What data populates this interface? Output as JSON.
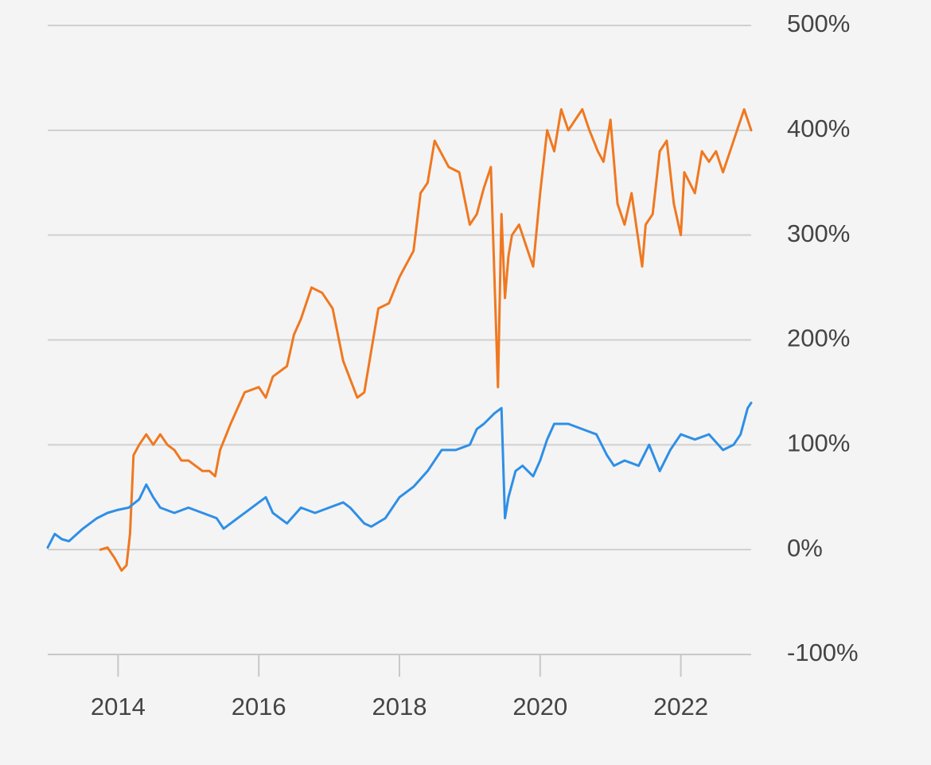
{
  "chart_data": {
    "type": "line",
    "title": "",
    "xlabel": "",
    "ylabel": "",
    "xlim": [
      2013.0,
      2023.0
    ],
    "ylim": [
      -100,
      500
    ],
    "x_ticks": [
      2014,
      2016,
      2018,
      2020,
      2022
    ],
    "x_tick_labels": [
      "2014",
      "2016",
      "2018",
      "2020",
      "2022"
    ],
    "y_ticks": [
      500,
      400,
      300,
      200,
      100,
      0,
      -100
    ],
    "y_tick_labels": [
      "500%",
      "400%",
      "300%",
      "200%",
      "100%",
      "0%",
      "-100%"
    ],
    "grid": "horizontal",
    "legend": "none",
    "colors": {
      "series_orange": "#f07820",
      "series_blue": "#2e8fe6",
      "grid": "#d0d0d0",
      "axis": "#c8c8c8",
      "background": "#f4f4f4"
    },
    "series": [
      {
        "color": "#f07820",
        "x": [
          2013.75,
          2013.85,
          2013.95,
          2014.05,
          2014.12,
          2014.17,
          2014.22,
          2014.3,
          2014.4,
          2014.5,
          2014.6,
          2014.7,
          2014.8,
          2014.9,
          2015.0,
          2015.1,
          2015.2,
          2015.3,
          2015.38,
          2015.45,
          2015.6,
          2015.8,
          2016.0,
          2016.1,
          2016.2,
          2016.4,
          2016.5,
          2016.6,
          2016.75,
          2016.9,
          2017.05,
          2017.2,
          2017.4,
          2017.5,
          2017.6,
          2017.7,
          2017.85,
          2018.0,
          2018.2,
          2018.3,
          2018.4,
          2018.5,
          2018.62,
          2018.7,
          2018.85,
          2019.0,
          2019.1,
          2019.2,
          2019.3,
          2019.4,
          2019.45,
          2019.5,
          2019.55,
          2019.6,
          2019.7,
          2019.8,
          2019.9,
          2020.0,
          2020.1,
          2020.2,
          2020.3,
          2020.4,
          2020.5,
          2020.6,
          2020.7,
          2020.82,
          2020.9,
          2021.0,
          2021.1,
          2021.2,
          2021.3,
          2021.45,
          2021.5,
          2021.6,
          2021.7,
          2021.8,
          2021.9,
          2022.0,
          2022.05,
          2022.2,
          2022.3,
          2022.4,
          2022.5,
          2022.6,
          2022.7,
          2022.8,
          2022.9,
          2023.0
        ],
        "y": [
          0,
          2,
          -8,
          -20,
          -15,
          15,
          90,
          100,
          110,
          100,
          110,
          100,
          95,
          85,
          85,
          80,
          75,
          75,
          70,
          95,
          120,
          150,
          155,
          145,
          165,
          175,
          205,
          220,
          250,
          245,
          230,
          180,
          145,
          150,
          190,
          230,
          235,
          260,
          285,
          340,
          350,
          390,
          375,
          365,
          360,
          310,
          320,
          345,
          365,
          155,
          320,
          240,
          280,
          300,
          310,
          290,
          270,
          340,
          400,
          380,
          420,
          400,
          410,
          420,
          400,
          380,
          370,
          410,
          330,
          310,
          340,
          270,
          310,
          320,
          380,
          390,
          330,
          300,
          360,
          340,
          380,
          370,
          380,
          360,
          380,
          400,
          420,
          400
        ]
      },
      {
        "color": "#2e8fe6",
        "x": [
          2013.0,
          2013.1,
          2013.2,
          2013.3,
          2013.5,
          2013.7,
          2013.85,
          2014.0,
          2014.15,
          2014.3,
          2014.4,
          2014.5,
          2014.6,
          2014.8,
          2015.0,
          2015.2,
          2015.4,
          2015.5,
          2015.7,
          2015.9,
          2016.1,
          2016.2,
          2016.4,
          2016.6,
          2016.8,
          2017.0,
          2017.2,
          2017.3,
          2017.5,
          2017.6,
          2017.8,
          2018.0,
          2018.2,
          2018.4,
          2018.6,
          2018.8,
          2019.0,
          2019.1,
          2019.2,
          2019.35,
          2019.45,
          2019.5,
          2019.55,
          2019.65,
          2019.75,
          2019.9,
          2020.0,
          2020.1,
          2020.2,
          2020.4,
          2020.6,
          2020.8,
          2020.95,
          2021.05,
          2021.2,
          2021.4,
          2021.55,
          2021.7,
          2021.85,
          2022.0,
          2022.2,
          2022.4,
          2022.6,
          2022.75,
          2022.85,
          2022.95,
          2023.0
        ],
        "y": [
          2,
          15,
          10,
          8,
          20,
          30,
          35,
          38,
          40,
          48,
          62,
          50,
          40,
          35,
          40,
          35,
          30,
          20,
          30,
          40,
          50,
          35,
          25,
          40,
          35,
          40,
          45,
          40,
          25,
          22,
          30,
          50,
          60,
          75,
          95,
          95,
          100,
          115,
          120,
          130,
          135,
          30,
          50,
          75,
          80,
          70,
          85,
          105,
          120,
          120,
          115,
          110,
          90,
          80,
          85,
          80,
          100,
          75,
          95,
          110,
          105,
          110,
          95,
          100,
          110,
          135,
          140
        ]
      }
    ]
  }
}
